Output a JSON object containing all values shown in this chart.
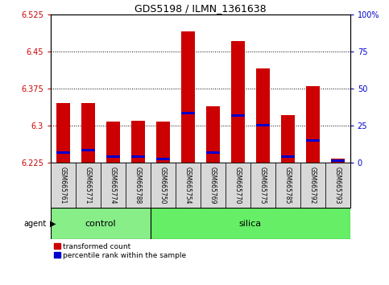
{
  "title": "GDS5198 / ILMN_1361638",
  "samples": [
    "GSM665761",
    "GSM665771",
    "GSM665774",
    "GSM665788",
    "GSM665750",
    "GSM665754",
    "GSM665769",
    "GSM665770",
    "GSM665775",
    "GSM665785",
    "GSM665792",
    "GSM665793"
  ],
  "groups": [
    "control",
    "control",
    "control",
    "control",
    "silica",
    "silica",
    "silica",
    "silica",
    "silica",
    "silica",
    "silica",
    "silica"
  ],
  "bar_tops": [
    6.345,
    6.345,
    6.308,
    6.31,
    6.308,
    6.49,
    6.338,
    6.47,
    6.415,
    6.32,
    6.38,
    6.233
  ],
  "blue_positions": [
    6.245,
    6.25,
    6.237,
    6.237,
    6.232,
    6.325,
    6.245,
    6.32,
    6.3,
    6.237,
    6.27,
    6.228
  ],
  "base": 6.225,
  "ylim_min": 6.225,
  "ylim_max": 6.525,
  "yticks_left": [
    6.225,
    6.3,
    6.375,
    6.45,
    6.525
  ],
  "yticks_right_vals": [
    0,
    25,
    50,
    75,
    100
  ],
  "bar_color": "#cc0000",
  "blue_color": "#0000cc",
  "control_color": "#88ee88",
  "silica_color": "#66ee66",
  "bar_width": 0.55,
  "legend_labels": [
    "transformed count",
    "percentile rank within the sample"
  ],
  "agent_label": "agent",
  "left_tick_color": "#cc0000",
  "right_axis_color": "#0000cc",
  "grid_color": "#000000"
}
